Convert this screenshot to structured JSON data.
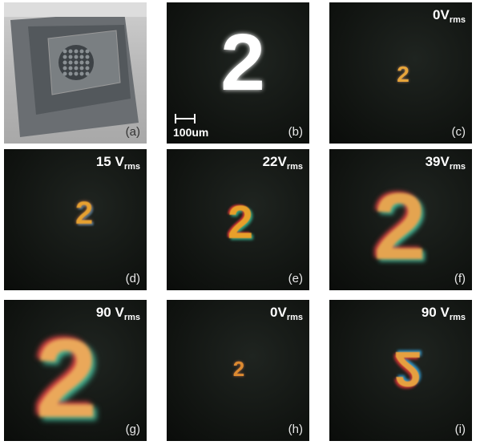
{
  "panels": [
    {
      "label": "(a)"
    },
    {
      "label": "(b)",
      "digit": "2",
      "scale_bar": "100um"
    },
    {
      "label": "(c)",
      "digit": "2",
      "voltage": "0V",
      "voltage_sub": "rms"
    },
    {
      "label": "(d)",
      "digit": "2",
      "voltage": "15 V",
      "voltage_sub": "rms"
    },
    {
      "label": "(e)",
      "digit": "2",
      "voltage": "22V",
      "voltage_sub": "rms"
    },
    {
      "label": "(f)",
      "digit": "2",
      "voltage": "39V",
      "voltage_sub": "rms"
    },
    {
      "label": "(g)",
      "digit": "2",
      "voltage": "90 V",
      "voltage_sub": "rms"
    },
    {
      "label": "(h)",
      "digit": "2",
      "voltage": "0V",
      "voltage_sub": "rms"
    },
    {
      "label": "(i)",
      "digit": "2",
      "voltage": "90 V",
      "voltage_sub": "rms"
    }
  ]
}
